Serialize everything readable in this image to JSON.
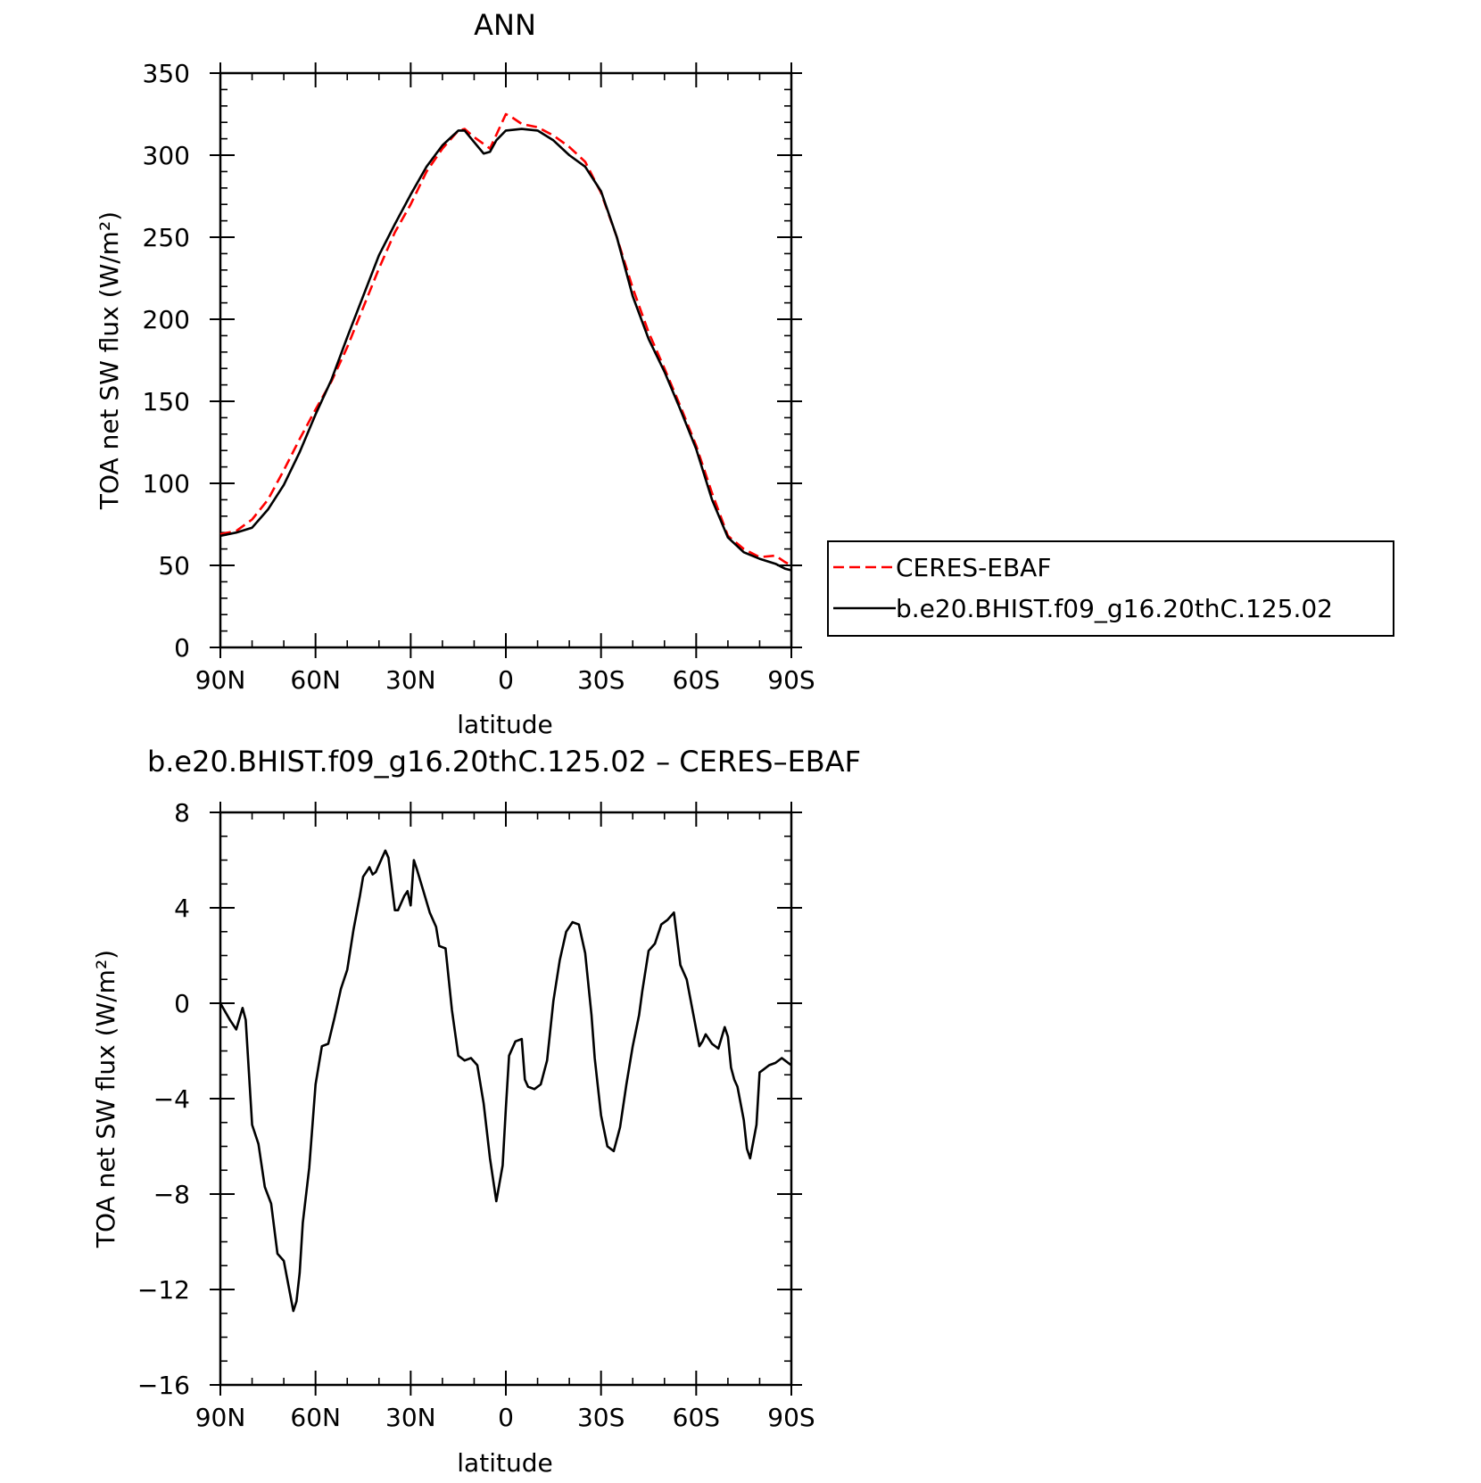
{
  "chart_data": [
    {
      "type": "line",
      "title": "ANN",
      "xlabel": "latitude",
      "ylabel": "TOA net SW flux (W/m²)",
      "xlim": [
        90,
        -90
      ],
      "ylim": [
        0,
        350
      ],
      "xticks": [
        90,
        60,
        30,
        0,
        -30,
        -60,
        -90
      ],
      "xtick_labels": [
        "90N",
        "60N",
        "30N",
        "0",
        "30S",
        "60S",
        "90S"
      ],
      "yticks": [
        0,
        50,
        100,
        150,
        200,
        250,
        300,
        350
      ],
      "ytick_labels": [
        "0",
        "50",
        "100",
        "150",
        "200",
        "250",
        "300",
        "350"
      ],
      "legend_position": "right, outside plot",
      "series": [
        {
          "name": "CERES-EBAF",
          "color": "#ff0000",
          "dash": "dashed",
          "x": [
            90,
            85,
            80,
            75,
            70,
            65,
            60,
            55,
            50,
            45,
            40,
            35,
            30,
            25,
            20,
            15,
            13,
            10,
            5,
            0,
            -2,
            -5,
            -10,
            -15,
            -20,
            -25,
            -30,
            -35,
            -40,
            -45,
            -50,
            -55,
            -60,
            -65,
            -70,
            -75,
            -80,
            -85,
            -88,
            -90
          ],
          "y": [
            69,
            71,
            78,
            90,
            108,
            127,
            145,
            162,
            183,
            207,
            231,
            253,
            270,
            290,
            304,
            315,
            316,
            311,
            304,
            325,
            323,
            319,
            317,
            312,
            305,
            296,
            277,
            250,
            219,
            192,
            170,
            147,
            123,
            94,
            68,
            60,
            55,
            56,
            52,
            50
          ]
        },
        {
          "name": "b.e20.BHIST.f09_g16.20thC.125.02",
          "color": "#000000",
          "dash": "solid",
          "x": [
            90,
            85,
            80,
            75,
            70,
            65,
            60,
            55,
            50,
            45,
            40,
            35,
            30,
            25,
            20,
            15,
            13,
            10,
            7,
            5,
            3,
            0,
            -5,
            -10,
            -15,
            -20,
            -25,
            -30,
            -35,
            -40,
            -45,
            -50,
            -55,
            -60,
            -65,
            -70,
            -75,
            -80,
            -85,
            -88,
            -90
          ],
          "y": [
            68,
            70,
            73,
            84,
            99,
            119,
            142,
            163,
            189,
            214,
            239,
            258,
            276,
            293,
            306,
            315,
            315,
            308,
            301,
            302,
            309,
            315,
            316,
            315,
            309,
            300,
            293,
            278,
            250,
            214,
            188,
            168,
            145,
            121,
            90,
            67,
            58,
            54,
            51,
            48,
            47
          ]
        }
      ]
    },
    {
      "type": "line",
      "title": "b.e20.BHIST.f09_g16.20thC.125.02 – CERES–EBAF",
      "xlabel": "latitude",
      "ylabel": "TOA net SW flux (W/m²)",
      "xlim": [
        90,
        -90
      ],
      "ylim": [
        -16,
        8
      ],
      "xticks": [
        90,
        60,
        30,
        0,
        -30,
        -60,
        -90
      ],
      "xtick_labels": [
        "90N",
        "60N",
        "30N",
        "0",
        "30S",
        "60S",
        "90S"
      ],
      "yticks": [
        -16,
        -12,
        -8,
        -4,
        0,
        4,
        8
      ],
      "ytick_labels": [
        "−16",
        "−12",
        "−8",
        "−4",
        "0",
        "4",
        "8"
      ],
      "series": [
        {
          "color": "#000000",
          "dash": "solid",
          "x": [
            90,
            87,
            85,
            83,
            82,
            80,
            78,
            76,
            74,
            72,
            70,
            68,
            67,
            66,
            65,
            64,
            62,
            60,
            58,
            56,
            54,
            52,
            50,
            48,
            46,
            45,
            43,
            42,
            41,
            39,
            38,
            37,
            35,
            34,
            32,
            31,
            30,
            29,
            28,
            26,
            24,
            22,
            21,
            19,
            17,
            15,
            13,
            11,
            9,
            7,
            5,
            3,
            1,
            0,
            -1,
            -3,
            -5,
            -6,
            -7,
            -9,
            -11,
            -13,
            -15,
            -17,
            -19,
            -21,
            -23,
            -25,
            -27,
            -28,
            -30,
            -32,
            -34,
            -36,
            -38,
            -40,
            -42,
            -43,
            -45,
            -47,
            -49,
            -51,
            -53,
            -55,
            -57,
            -59,
            -61,
            -62,
            -63,
            -65,
            -67,
            -69,
            -70,
            -71,
            -72,
            -73,
            -75,
            -76,
            -77,
            -79,
            -80,
            -81,
            -83,
            -85,
            -87,
            -88,
            -89,
            -90
          ],
          "y": [
            0,
            -0.7,
            -1.1,
            -0.2,
            -0.7,
            -5.1,
            -5.9,
            -7.7,
            -8.4,
            -10.5,
            -10.8,
            -12.2,
            -12.9,
            -12.5,
            -11.3,
            -9.2,
            -6.9,
            -3.4,
            -1.8,
            -1.7,
            -0.6,
            0.6,
            1.4,
            3.1,
            4.5,
            5.3,
            5.7,
            5.4,
            5.5,
            6.1,
            6.4,
            6.1,
            3.9,
            3.9,
            4.5,
            4.7,
            4.1,
            6.0,
            5.6,
            4.7,
            3.8,
            3.2,
            2.4,
            2.3,
            -0.3,
            -2.2,
            -2.4,
            -2.3,
            -2.6,
            -4.2,
            -6.5,
            -8.3,
            -6.8,
            -4.4,
            -2.2,
            -1.6,
            -1.5,
            -3.2,
            -3.5,
            -3.6,
            -3.4,
            -2.4,
            0.1,
            1.8,
            3.0,
            3.4,
            3.3,
            2.1,
            -0.5,
            -2.3,
            -4.7,
            -6.0,
            -6.2,
            -5.2,
            -3.4,
            -1.8,
            -0.5,
            0.5,
            2.2,
            2.5,
            3.3,
            3.5,
            3.8,
            1.6,
            1.0,
            -0.4,
            -1.8,
            -1.6,
            -1.3,
            -1.7,
            -1.9,
            -1.0,
            -1.4,
            -2.7,
            -3.2,
            -3.5,
            -4.9,
            -6.1,
            -6.5,
            -5.1,
            -2.9,
            -2.8,
            -2.6,
            -2.5,
            -2.3,
            -2.4,
            -2.5,
            -2.6
          ]
        }
      ]
    }
  ]
}
